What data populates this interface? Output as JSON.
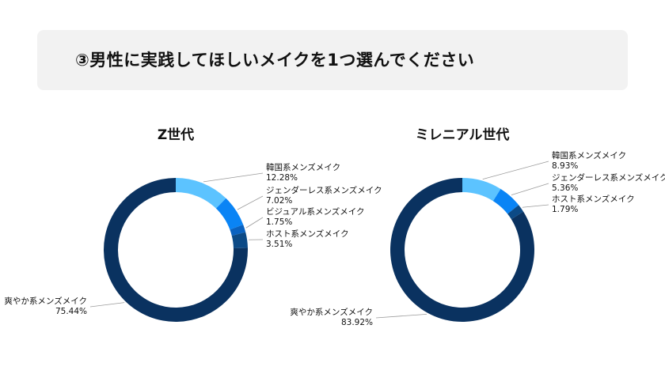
{
  "page_title": "③男性に実践してほしいメイクを1つ選んでください",
  "colors": {
    "sawayaka": "#0a3260",
    "kankoku": "#5cc3ff",
    "gender": "#0a84f5",
    "visual": "#0a62c0",
    "host": "#0c4a86",
    "leader_line": "#9a9a9a",
    "banner_bg": "#f2f2f2"
  },
  "chart_data": [
    {
      "type": "pie",
      "variant": "donut",
      "title": "Z世代",
      "slices": [
        {
          "label": "韓国系メンズメイク",
          "value": 12.28,
          "value_label": "12.28%",
          "color": "#5cc3ff"
        },
        {
          "label": "ジェンダーレス系メンズメイク",
          "value": 7.02,
          "value_label": "7.02%",
          "color": "#0a84f5"
        },
        {
          "label": "ビジュアル系メンズメイク",
          "value": 1.75,
          "value_label": "1.75%",
          "color": "#0a62c0"
        },
        {
          "label": "ホスト系メンズメイク",
          "value": 3.51,
          "value_label": "3.51%",
          "color": "#0c4a86"
        },
        {
          "label": "爽やか系メンズメイク",
          "value": 75.44,
          "value_label": "75.44%",
          "color": "#0a3260"
        }
      ],
      "start_angle_deg": 0,
      "direction": "clockwise"
    },
    {
      "type": "pie",
      "variant": "donut",
      "title": "ミレニアル世代",
      "slices": [
        {
          "label": "韓国系メンズメイク",
          "value": 8.93,
          "value_label": "8.93%",
          "color": "#5cc3ff"
        },
        {
          "label": "ジェンダーレス系メンズメイク",
          "value": 5.36,
          "value_label": "5.36%",
          "color": "#0a84f5"
        },
        {
          "label": "ホスト系メンズメイク",
          "value": 1.79,
          "value_label": "1.79%",
          "color": "#0c4a86"
        },
        {
          "label": "爽やか系メンズメイク",
          "value": 83.92,
          "value_label": "83.92%",
          "color": "#0a3260"
        }
      ],
      "start_angle_deg": 0,
      "direction": "clockwise"
    }
  ]
}
